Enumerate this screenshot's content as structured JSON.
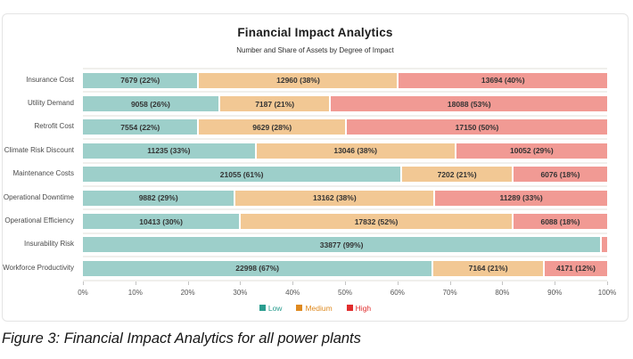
{
  "chart": {
    "title": "Financial Impact Analytics",
    "subtitle": "Number and Share of Assets by Degree of Impact",
    "bar_colors": {
      "low": "#9dcfca",
      "medium": "#f2c894",
      "high": "#f19a94"
    },
    "legend": [
      {
        "key": "low",
        "name": "Low",
        "color": "#2a9d8f"
      },
      {
        "key": "medium",
        "name": "Medium",
        "color": "#df8a20"
      },
      {
        "key": "high",
        "name": "High",
        "color": "#e12d2d"
      }
    ],
    "x_ticks": [
      "0%",
      "10%",
      "20%",
      "30%",
      "40%",
      "50%",
      "60%",
      "70%",
      "80%",
      "90%",
      "100%"
    ],
    "rows": [
      {
        "category": "Insurance Cost",
        "segments": [
          {
            "key": "low",
            "pct": 22,
            "label": "7679 (22%)"
          },
          {
            "key": "medium",
            "pct": 38,
            "label": "12960 (38%)"
          },
          {
            "key": "high",
            "pct": 40,
            "label": "13694 (40%)"
          }
        ]
      },
      {
        "category": "Utility Demand",
        "segments": [
          {
            "key": "low",
            "pct": 26,
            "label": "9058 (26%)"
          },
          {
            "key": "medium",
            "pct": 21,
            "label": "7187 (21%)"
          },
          {
            "key": "high",
            "pct": 53,
            "label": "18088 (53%)"
          }
        ]
      },
      {
        "category": "Retrofit Cost",
        "segments": [
          {
            "key": "low",
            "pct": 22,
            "label": "7554 (22%)"
          },
          {
            "key": "medium",
            "pct": 28,
            "label": "9629 (28%)"
          },
          {
            "key": "high",
            "pct": 50,
            "label": "17150 (50%)"
          }
        ]
      },
      {
        "category": "Climate Risk Discount",
        "segments": [
          {
            "key": "low",
            "pct": 33,
            "label": "11235 (33%)"
          },
          {
            "key": "medium",
            "pct": 38,
            "label": "13046 (38%)"
          },
          {
            "key": "high",
            "pct": 29,
            "label": "10052 (29%)"
          }
        ]
      },
      {
        "category": "Maintenance Costs",
        "segments": [
          {
            "key": "low",
            "pct": 61,
            "label": "21055 (61%)"
          },
          {
            "key": "medium",
            "pct": 21,
            "label": "7202 (21%)"
          },
          {
            "key": "high",
            "pct": 18,
            "label": "6076 (18%)"
          }
        ]
      },
      {
        "category": "Operational Downtime",
        "segments": [
          {
            "key": "low",
            "pct": 29,
            "label": "9882 (29%)"
          },
          {
            "key": "medium",
            "pct": 38,
            "label": "13162 (38%)"
          },
          {
            "key": "high",
            "pct": 33,
            "label": "11289 (33%)"
          }
        ]
      },
      {
        "category": "Operational Efficiency",
        "segments": [
          {
            "key": "low",
            "pct": 30,
            "label": "10413 (30%)"
          },
          {
            "key": "medium",
            "pct": 52,
            "label": "17832 (52%)"
          },
          {
            "key": "high",
            "pct": 18,
            "label": "6088 (18%)"
          }
        ]
      },
      {
        "category": "Insurability Risk",
        "segments": [
          {
            "key": "low",
            "pct": 99,
            "label": "33877 (99%)"
          },
          {
            "key": "high",
            "pct": 1,
            "label": ""
          }
        ]
      },
      {
        "category": "Workforce Productivity",
        "segments": [
          {
            "key": "low",
            "pct": 67,
            "label": "22998 (67%)"
          },
          {
            "key": "medium",
            "pct": 21,
            "label": "7164 (21%)"
          },
          {
            "key": "high",
            "pct": 12,
            "label": "4171 (12%)"
          }
        ]
      }
    ]
  },
  "chart_data": {
    "type": "bar",
    "stacked": true,
    "orientation": "horizontal",
    "title": "Financial Impact Analytics",
    "subtitle": "Number and Share of Assets by Degree of Impact",
    "categories": [
      "Insurance Cost",
      "Utility Demand",
      "Retrofit Cost",
      "Climate Risk Discount",
      "Maintenance Costs",
      "Operational Downtime",
      "Operational Efficiency",
      "Insurability Risk",
      "Workforce Productivity"
    ],
    "series": [
      {
        "name": "Low",
        "values": [
          7679,
          9058,
          7554,
          11235,
          21055,
          9882,
          10413,
          33877,
          22998
        ],
        "percents": [
          22,
          26,
          22,
          33,
          61,
          29,
          30,
          99,
          67
        ]
      },
      {
        "name": "Medium",
        "values": [
          12960,
          7187,
          9629,
          13046,
          7202,
          13162,
          17832,
          0,
          7164
        ],
        "percents": [
          38,
          21,
          28,
          38,
          21,
          38,
          52,
          0,
          21
        ]
      },
      {
        "name": "High",
        "values": [
          13694,
          18088,
          17150,
          10052,
          6076,
          11289,
          6088,
          null,
          4171
        ],
        "percents": [
          40,
          53,
          50,
          29,
          18,
          33,
          18,
          1,
          12
        ]
      }
    ],
    "xlabel": "",
    "ylabel": "",
    "xlim": [
      0,
      100
    ],
    "x_tick_labels": [
      "0%",
      "10%",
      "20%",
      "30%",
      "40%",
      "50%",
      "60%",
      "70%",
      "80%",
      "90%",
      "100%"
    ],
    "grid": false,
    "legend_position": "bottom"
  },
  "caption": "Figure 3: Financial Impact Analytics for all power plants"
}
